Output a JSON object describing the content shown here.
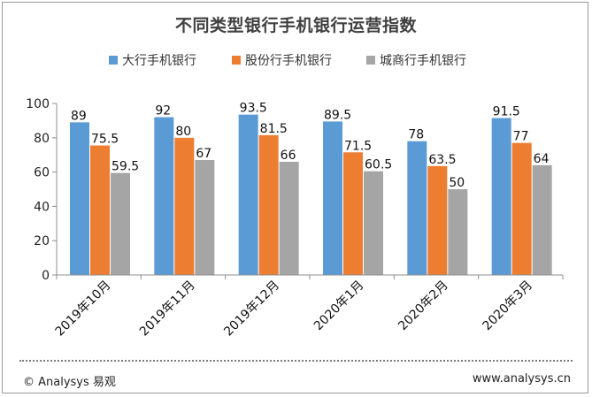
{
  "footer": {
    "copyright": "© Analysys 易观",
    "website": "www.analysys.cn"
  },
  "chart_data": {
    "type": "bar",
    "title": "不同类型银行手机银行运营指数",
    "categories": [
      "2019年10月",
      "2019年11月",
      "2019年12月",
      "2020年1月",
      "2020年2月",
      "2020年3月"
    ],
    "series": [
      {
        "name": "大行手机银行",
        "color": "#5b9bd5",
        "values": [
          89,
          92,
          93.5,
          89.5,
          78,
          91.5
        ]
      },
      {
        "name": "股份行手机银行",
        "color": "#ed7d31",
        "values": [
          75.5,
          80,
          81.5,
          71.5,
          63.5,
          77
        ]
      },
      {
        "name": "城商行手机银行",
        "color": "#a5a5a5",
        "values": [
          59.5,
          67,
          66,
          60.5,
          50,
          64
        ]
      }
    ],
    "ylim": [
      0,
      100
    ],
    "yticks": [
      0,
      20,
      40,
      60,
      80,
      100
    ],
    "xlabel": "",
    "ylabel": "",
    "legend": "top",
    "grid": false
  }
}
